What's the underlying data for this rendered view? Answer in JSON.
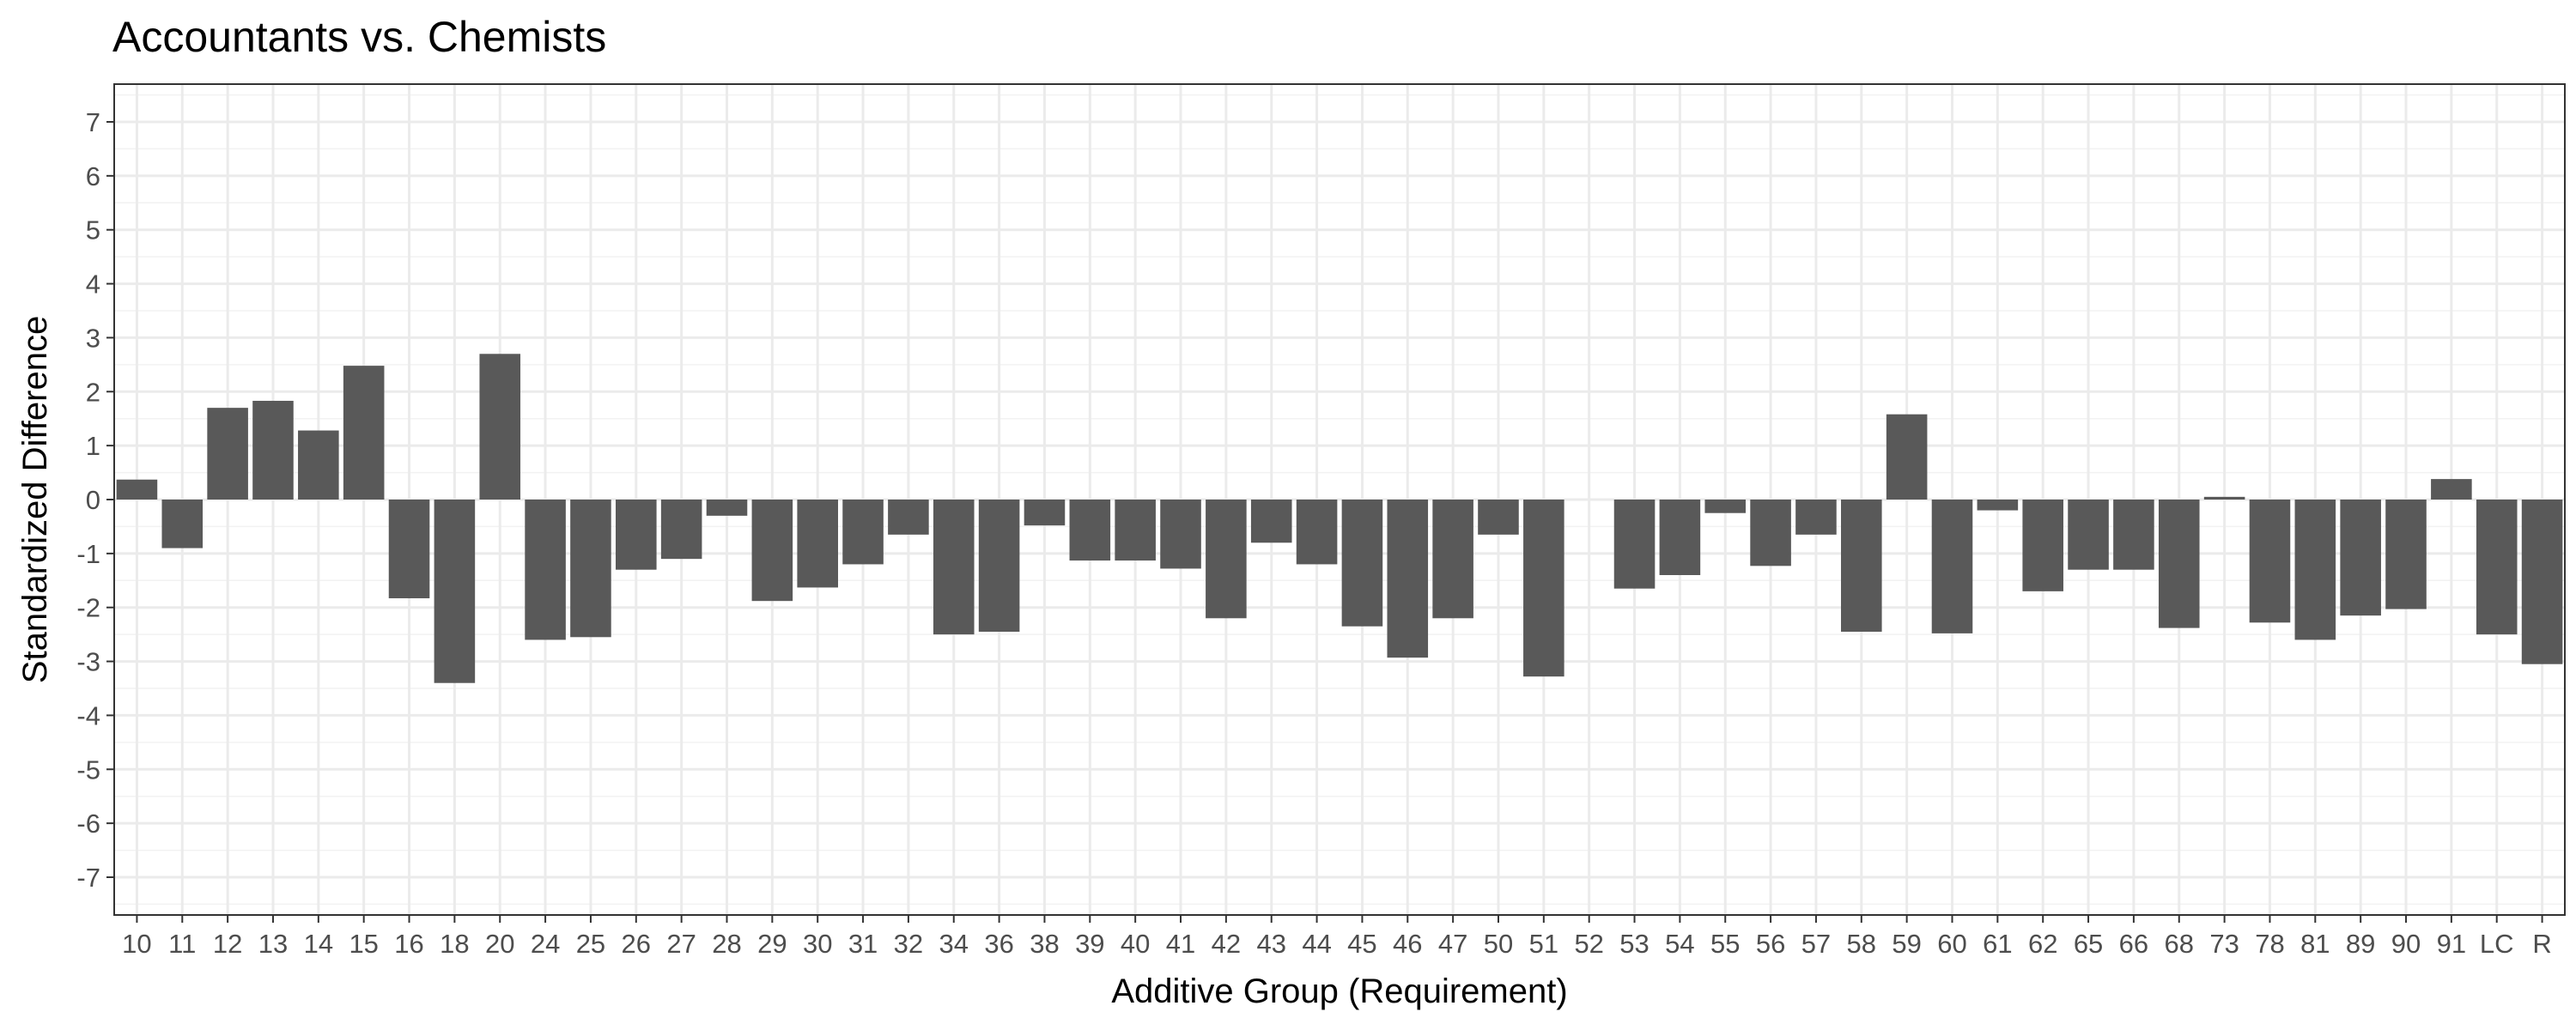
{
  "chart_data": {
    "type": "bar",
    "title": "Accountants vs. Chemists",
    "xlabel": "Additive Group (Requirement)",
    "ylabel": "Standardized Difference",
    "ylim": [
      -7.7,
      7.7
    ],
    "yticks": [
      7,
      6,
      5,
      4,
      3,
      2,
      1,
      0,
      -1,
      -2,
      -3,
      -4,
      -5,
      -6,
      -7
    ],
    "grid": true,
    "legend": "none",
    "bar_color": "#595959",
    "categories": [
      "10",
      "11",
      "12",
      "13",
      "14",
      "15",
      "16",
      "18",
      "20",
      "24",
      "25",
      "26",
      "27",
      "28",
      "29",
      "30",
      "31",
      "32",
      "34",
      "36",
      "38",
      "39",
      "40",
      "41",
      "42",
      "43",
      "44",
      "45",
      "46",
      "47",
      "50",
      "51",
      "52",
      "53",
      "54",
      "55",
      "56",
      "57",
      "58",
      "59",
      "60",
      "61",
      "62",
      "65",
      "66",
      "68",
      "73",
      "78",
      "81",
      "89",
      "90",
      "91",
      "LC",
      "R"
    ],
    "values": [
      0.37,
      -0.9,
      1.7,
      1.83,
      1.28,
      2.48,
      -1.83,
      -3.4,
      2.7,
      -2.6,
      -2.55,
      -1.3,
      -1.1,
      -0.3,
      -1.88,
      -1.63,
      -1.2,
      -0.65,
      -2.5,
      -2.45,
      -0.48,
      -1.13,
      -1.13,
      -1.28,
      -2.2,
      -0.8,
      -1.2,
      -2.35,
      -2.93,
      -2.2,
      -0.65,
      -3.28,
      0,
      -1.65,
      -1.4,
      -0.25,
      -1.23,
      -0.65,
      -2.45,
      1.58,
      -2.48,
      -0.2,
      -1.7,
      -1.3,
      -1.3,
      -2.38,
      0.05,
      -2.28,
      -2.6,
      -2.15,
      -2.03,
      0.38,
      -2.5,
      -3.05
    ]
  }
}
